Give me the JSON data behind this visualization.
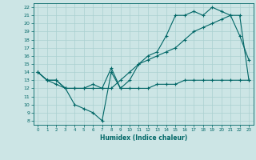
{
  "title": "",
  "xlabel": "Humidex (Indice chaleur)",
  "xlim": [
    -0.5,
    23.5
  ],
  "ylim": [
    7.5,
    22.5
  ],
  "xticks": [
    0,
    1,
    2,
    3,
    4,
    5,
    6,
    7,
    8,
    9,
    10,
    11,
    12,
    13,
    14,
    15,
    16,
    17,
    18,
    19,
    20,
    21,
    22,
    23
  ],
  "yticks": [
    8,
    9,
    10,
    11,
    12,
    13,
    14,
    15,
    16,
    17,
    18,
    19,
    20,
    21,
    22
  ],
  "bg_color": "#cce5e5",
  "grid_color": "#aad0d0",
  "line_color": "#006666",
  "line1_x": [
    0,
    1,
    2,
    3,
    4,
    5,
    6,
    7,
    8,
    9,
    10,
    11,
    12,
    13,
    14,
    15,
    16,
    17,
    18,
    19,
    20,
    21,
    22,
    23
  ],
  "line1_y": [
    14,
    13,
    12.5,
    12,
    10,
    9.5,
    9,
    8,
    14,
    12,
    12,
    12,
    12,
    12.5,
    12.5,
    12.5,
    13,
    13,
    13,
    13,
    13,
    13,
    13,
    13
  ],
  "line2_x": [
    0,
    1,
    2,
    3,
    4,
    5,
    6,
    7,
    8,
    9,
    10,
    11,
    12,
    13,
    14,
    15,
    16,
    17,
    18,
    19,
    20,
    21,
    22,
    23
  ],
  "line2_y": [
    14,
    13,
    13,
    12,
    12,
    12,
    12,
    12,
    12,
    13,
    14,
    15,
    15.5,
    16,
    16.5,
    17,
    18,
    19,
    19.5,
    20,
    20.5,
    21,
    21,
    13
  ],
  "line3_x": [
    0,
    1,
    2,
    3,
    4,
    5,
    6,
    7,
    8,
    9,
    10,
    11,
    12,
    13,
    14,
    15,
    16,
    17,
    18,
    19,
    20,
    21,
    22,
    23
  ],
  "line3_y": [
    14,
    13,
    13,
    12,
    12,
    12,
    12.5,
    12,
    14.5,
    12,
    13,
    15,
    16,
    16.5,
    18.5,
    21,
    21,
    21.5,
    21,
    22,
    21.5,
    21,
    18.5,
    15.5
  ]
}
